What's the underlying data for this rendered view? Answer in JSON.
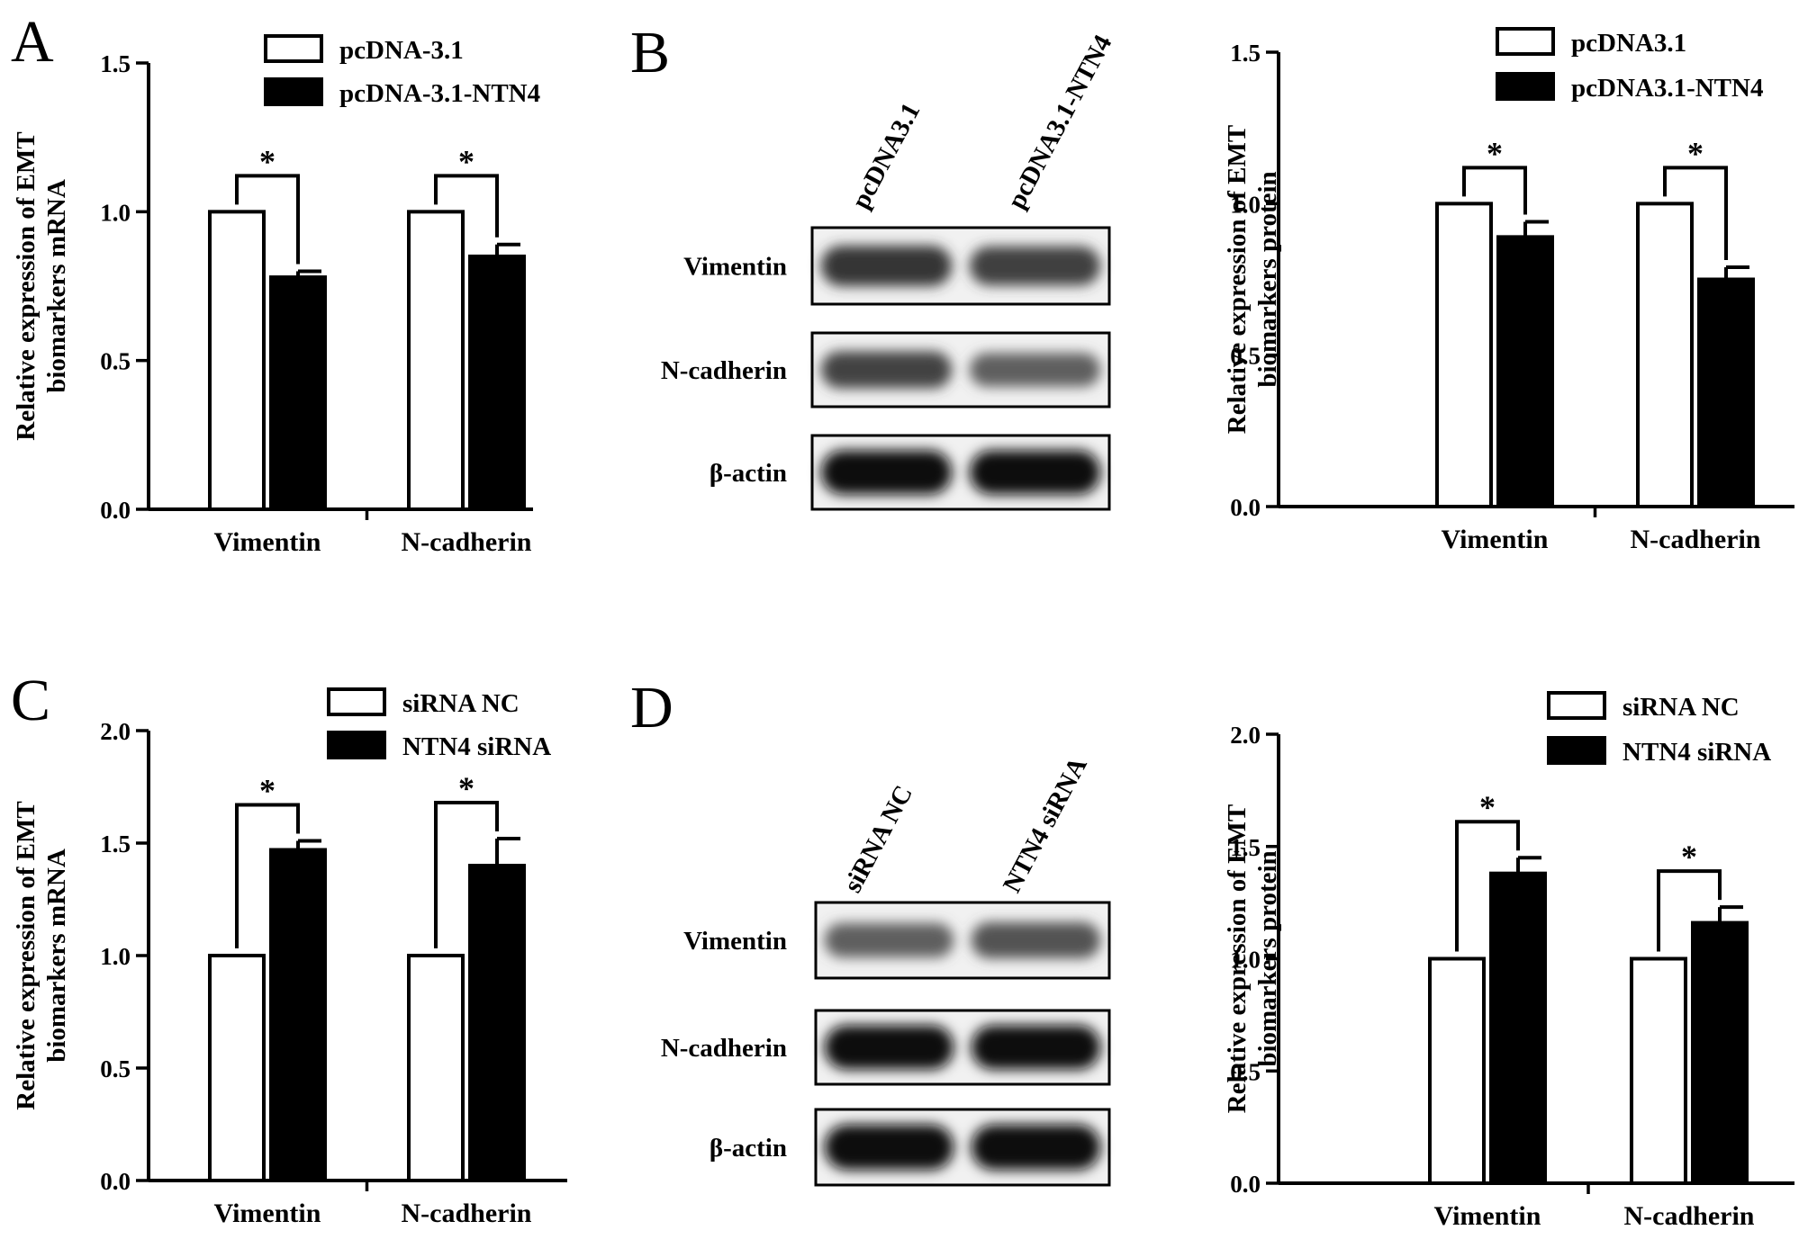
{
  "panels": {
    "A": {
      "letter": "A"
    },
    "B": {
      "letter": "B"
    },
    "C": {
      "letter": "C"
    },
    "D": {
      "letter": "D"
    }
  },
  "chart_data": [
    {
      "id": "A",
      "type": "bar",
      "categories": [
        "Vimentin",
        "N-cadherin"
      ],
      "series": [
        {
          "name": "pcDNA-3.1",
          "values": [
            1.0,
            1.0
          ],
          "errors": [
            0,
            0
          ],
          "fill": "#ffffff"
        },
        {
          "name": "pcDNA-3.1-NTN4",
          "values": [
            0.78,
            0.85
          ],
          "errors": [
            0.02,
            0.04
          ],
          "fill": "#000000"
        }
      ],
      "ylabel_lines": [
        "Relative expression of EMT",
        "biomarkers mRNA"
      ],
      "ylim": [
        0,
        1.5
      ],
      "ticks": [
        "0.0",
        "0.5",
        "1.0",
        "1.5"
      ],
      "tick_values": [
        0,
        0.5,
        1.0,
        1.5
      ],
      "significance": [
        "*",
        "*"
      ],
      "legend_position": "top-right"
    },
    {
      "id": "B",
      "type": "bar",
      "categories": [
        "Vimentin",
        "N-cadherin"
      ],
      "series": [
        {
          "name": "pcDNA3.1",
          "values": [
            1.0,
            1.0
          ],
          "errors": [
            0,
            0
          ],
          "fill": "#ffffff"
        },
        {
          "name": "pcDNA3.1-NTN4",
          "values": [
            0.89,
            0.75
          ],
          "errors": [
            0.05,
            0.04
          ],
          "fill": "#000000"
        }
      ],
      "ylabel_lines": [
        "Relative expression of EMT",
        "biomarkers protein"
      ],
      "ylim": [
        0,
        1.5
      ],
      "ticks": [
        "0.0",
        "0.5",
        "1.0",
        "1.5"
      ],
      "tick_values": [
        0,
        0.5,
        1.0,
        1.5
      ],
      "significance": [
        "*",
        "*"
      ],
      "legend_position": "top-right"
    },
    {
      "id": "C",
      "type": "bar",
      "categories": [
        "Vimentin",
        "N-cadherin"
      ],
      "series": [
        {
          "name": "siRNA NC",
          "values": [
            1.0,
            1.0
          ],
          "errors": [
            0,
            0
          ],
          "fill": "#ffffff"
        },
        {
          "name": "NTN4 siRNA",
          "values": [
            1.47,
            1.4
          ],
          "errors": [
            0.04,
            0.12
          ],
          "fill": "#000000"
        }
      ],
      "ylabel_lines": [
        "Relative expression of EMT",
        "biomarkers mRNA"
      ],
      "ylim": [
        0,
        2.0
      ],
      "ticks": [
        "0.0",
        "0.5",
        "1.0",
        "1.5",
        "2.0"
      ],
      "tick_values": [
        0,
        0.5,
        1.0,
        1.5,
        2.0
      ],
      "significance": [
        "*",
        "*"
      ],
      "legend_position": "top-right"
    },
    {
      "id": "D",
      "type": "bar",
      "categories": [
        "Vimentin",
        "N-cadherin"
      ],
      "series": [
        {
          "name": "siRNA NC",
          "values": [
            1.0,
            1.0
          ],
          "errors": [
            0,
            0
          ],
          "fill": "#ffffff"
        },
        {
          "name": "NTN4 siRNA",
          "values": [
            1.38,
            1.16
          ],
          "errors": [
            0.07,
            0.07
          ],
          "fill": "#000000"
        }
      ],
      "ylabel_lines": [
        "Relative expression of EMT",
        "biomarkers protein"
      ],
      "ylim": [
        0,
        2.0
      ],
      "ticks": [
        "0.0",
        "0.5",
        "1.0",
        "1.5",
        "2.0"
      ],
      "tick_values": [
        0,
        0.5,
        1.0,
        1.5,
        2.0
      ],
      "significance": [
        "*",
        "*"
      ],
      "legend_position": "top-right"
    }
  ],
  "blots": [
    {
      "id": "B",
      "lanes": [
        "pcDNA3.1",
        "pcDNA3.1-NTN4"
      ],
      "rows": [
        {
          "label": "Vimentin",
          "intensity": [
            0.78,
            0.72
          ]
        },
        {
          "label": "N-cadherin",
          "intensity": [
            0.7,
            0.55
          ]
        },
        {
          "label": "β-actin",
          "intensity": [
            1.0,
            1.0
          ]
        }
      ]
    },
    {
      "id": "D",
      "lanes": [
        "siRNA NC",
        "NTN4 siRNA"
      ],
      "rows": [
        {
          "label": "Vimentin",
          "intensity": [
            0.55,
            0.62
          ]
        },
        {
          "label": "N-cadherin",
          "intensity": [
            1.0,
            1.0
          ]
        },
        {
          "label": "β-actin",
          "intensity": [
            1.0,
            1.0
          ]
        }
      ]
    }
  ]
}
